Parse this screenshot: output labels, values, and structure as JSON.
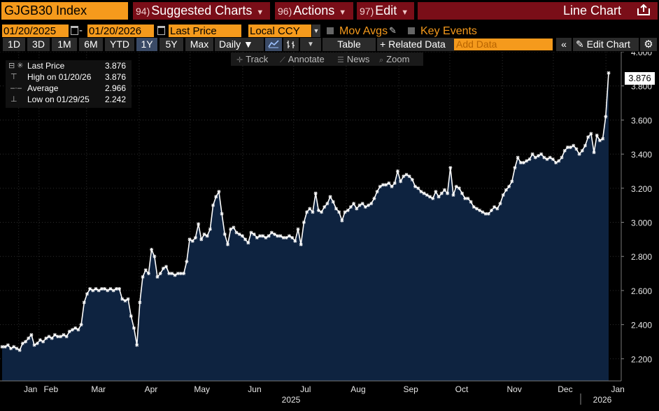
{
  "toolbar": {
    "ticker": "GJGB30 Index",
    "menus": [
      {
        "num": "94)",
        "label": "Suggested Charts"
      },
      {
        "num": "96)",
        "label": "Actions"
      },
      {
        "num": "97)",
        "label": "Edit"
      }
    ],
    "chart_type": "Line Chart"
  },
  "dates": {
    "start": "01/20/2025",
    "end": "01/20/2026",
    "field": "Last Price",
    "currency": "Local CCY",
    "mov_avgs": "Mov Avgs",
    "key_events": "Key Events"
  },
  "periods": [
    "1D",
    "3D",
    "1M",
    "6M",
    "YTD",
    "1Y",
    "5Y",
    "Max"
  ],
  "active_period": "1Y",
  "frequency": "Daily",
  "table_label": "Table",
  "related_label": "Related Data",
  "add_data_placeholder": "Add Data",
  "edit_chart_label": "Edit Chart",
  "tools": [
    "Track",
    "Annotate",
    "News",
    "Zoom"
  ],
  "legend": {
    "rows": [
      {
        "label": "Last Price",
        "value": "3.876"
      },
      {
        "label": "High on 01/20/26",
        "value": "3.876"
      },
      {
        "label": "Average",
        "value": "2.966"
      },
      {
        "label": "Low on 01/29/25",
        "value": "2.242"
      }
    ]
  },
  "last_price_tag": "3.876",
  "colors": {
    "accent": "#f59a1c",
    "menu_bg": "#7a0e18",
    "area_fill": "#0e2340",
    "line": "#ffffff"
  },
  "chart_data": {
    "type": "area",
    "title": "GJGB30 Index",
    "series": [
      {
        "name": "Last Price",
        "values": [
          2.27,
          2.27,
          2.28,
          2.26,
          2.27,
          2.26,
          2.25,
          2.29,
          2.3,
          2.32,
          2.34,
          2.28,
          2.29,
          2.31,
          2.3,
          2.32,
          2.33,
          2.32,
          2.34,
          2.33,
          2.33,
          2.34,
          2.33,
          2.36,
          2.37,
          2.38,
          2.37,
          2.4,
          2.53,
          2.58,
          2.61,
          2.6,
          2.61,
          2.6,
          2.61,
          2.61,
          2.6,
          2.61,
          2.6,
          2.61,
          2.61,
          2.55,
          2.54,
          2.55,
          2.45,
          2.38,
          2.28,
          2.53,
          2.68,
          2.72,
          2.7,
          2.84,
          2.8,
          2.68,
          2.7,
          2.73,
          2.74,
          2.7,
          2.7,
          2.69,
          2.7,
          2.7,
          2.7,
          2.77,
          2.9,
          2.89,
          2.91,
          2.99,
          2.9,
          2.93,
          2.92,
          2.96,
          3.1,
          3.15,
          3.18,
          3.05,
          2.93,
          2.87,
          2.96,
          2.97,
          2.94,
          2.93,
          2.92,
          2.9,
          2.88,
          2.94,
          2.93,
          2.91,
          2.92,
          2.92,
          2.91,
          2.92,
          2.94,
          2.93,
          2.92,
          2.92,
          2.91,
          2.91,
          2.92,
          2.91,
          2.89,
          2.96,
          2.87,
          3.0,
          3.06,
          3.08,
          3.06,
          3.17,
          3.07,
          3.06,
          3.09,
          3.11,
          3.15,
          3.12,
          3.08,
          3.06,
          3.01,
          3.06,
          3.07,
          3.09,
          3.11,
          3.08,
          3.1,
          3.11,
          3.09,
          3.1,
          3.11,
          3.14,
          3.18,
          3.21,
          3.22,
          3.22,
          3.23,
          3.21,
          3.23,
          3.3,
          3.24,
          3.27,
          3.28,
          3.27,
          3.25,
          3.21,
          3.2,
          3.18,
          3.17,
          3.16,
          3.15,
          3.14,
          3.18,
          3.15,
          3.17,
          3.19,
          3.17,
          3.32,
          3.16,
          3.21,
          3.2,
          3.17,
          3.14,
          3.14,
          3.12,
          3.09,
          3.08,
          3.07,
          3.06,
          3.05,
          3.05,
          3.07,
          3.09,
          3.08,
          3.11,
          3.16,
          3.19,
          3.21,
          3.24,
          3.32,
          3.38,
          3.35,
          3.35,
          3.36,
          3.37,
          3.4,
          3.38,
          3.39,
          3.4,
          3.38,
          3.37,
          3.38,
          3.37,
          3.35,
          3.36,
          3.38,
          3.42,
          3.44,
          3.44,
          3.45,
          3.43,
          3.4,
          3.42,
          3.45,
          3.5,
          3.52,
          3.41,
          3.51,
          3.48,
          3.49,
          3.62,
          3.876
        ]
      }
    ],
    "x_ticks": [
      "Jan",
      "Feb",
      "Mar",
      "Apr",
      "May",
      "Jun",
      "Jul",
      "Aug",
      "Sep",
      "Oct",
      "Nov",
      "Dec",
      "Jan"
    ],
    "x_tick_positions_days": [
      0,
      12,
      40,
      71,
      101,
      132,
      162,
      193,
      224,
      254,
      285,
      315,
      346
    ],
    "x_range_days": [
      -11,
      355
    ],
    "year_labels": [
      "2025",
      "2026"
    ],
    "y_ticks": [
      "2.200",
      "2.400",
      "2.600",
      "2.800",
      "3.000",
      "3.200",
      "3.400",
      "3.600",
      "3.800",
      "4.000"
    ],
    "ylim": [
      2.07,
      4.0
    ],
    "xlabel": "",
    "ylabel": "",
    "grid": true
  }
}
